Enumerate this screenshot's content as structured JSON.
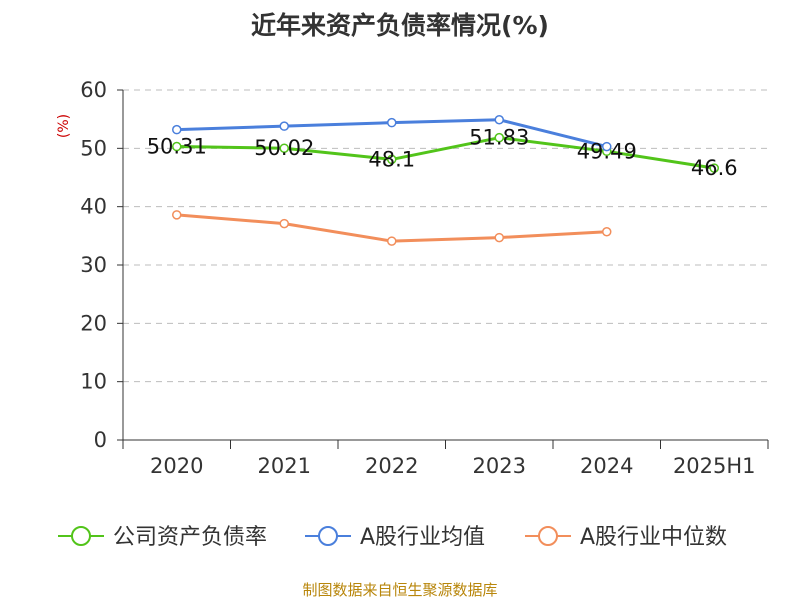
{
  "title": "近年来资产负债率情况(%)",
  "source": "制图数据来自恒生聚源数据库",
  "chart_data": {
    "type": "line",
    "title": "近年来资产负债率情况(%)",
    "ylabel": "(%)",
    "categories": [
      "2020",
      "2021",
      "2022",
      "2023",
      "2024",
      "2025H1"
    ],
    "ylim": [
      0,
      60
    ],
    "yticks": [
      0,
      10,
      20,
      30,
      40,
      50,
      60
    ],
    "grid": true,
    "legend_position": "bottom",
    "series": [
      {
        "name": "公司资产负债率",
        "color": "#52c41a",
        "values": [
          50.31,
          50.02,
          48.1,
          51.83,
          49.49,
          46.6
        ],
        "labels": [
          "50.31",
          "50.02",
          "48.1",
          "51.83",
          "49.49",
          "46.6"
        ]
      },
      {
        "name": "A股行业均值",
        "color": "#4a7fdc",
        "values": [
          53.2,
          53.8,
          54.4,
          54.9,
          50.3,
          null
        ]
      },
      {
        "name": "A股行业中位数",
        "color": "#f28e5b",
        "values": [
          38.6,
          37.1,
          34.1,
          34.7,
          35.7,
          null
        ]
      }
    ]
  }
}
